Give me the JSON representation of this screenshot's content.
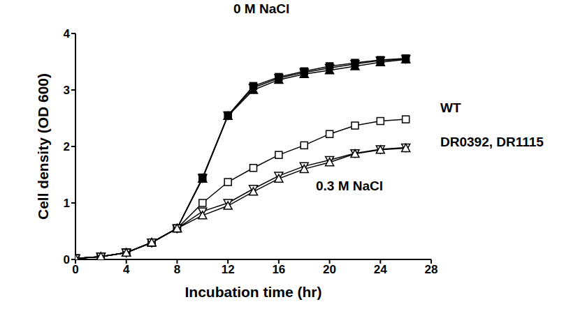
{
  "chart_data": {
    "type": "line",
    "x_label": "Incubation time (hr)",
    "y_label": "Cell density (OD 600)",
    "x": [
      0,
      2,
      4,
      6,
      8,
      10,
      12,
      14,
      16,
      18,
      20,
      22,
      24,
      26
    ],
    "series": [
      {
        "color": "#000000",
        "marker": "square",
        "values": [
          0.02,
          0.05,
          0.12,
          0.3,
          0.55,
          1.45,
          2.55,
          3.07,
          3.23,
          3.33,
          3.42,
          3.48,
          3.53,
          3.56
        ]
      },
      {
        "color": "#000000",
        "marker": "triangle",
        "values": [
          0.02,
          0.05,
          0.12,
          0.3,
          0.55,
          1.43,
          2.54,
          3.0,
          3.18,
          3.28,
          3.35,
          3.42,
          3.49,
          3.54
        ]
      },
      {
        "color": "#000000",
        "marker": "triangle_down",
        "values": [
          0.02,
          0.05,
          0.12,
          0.3,
          0.55,
          1.44,
          2.55,
          3.04,
          3.21,
          3.31,
          3.39,
          3.46,
          3.52,
          3.55
        ]
      },
      {
        "color": "#000000",
        "marker": "open_square",
        "values": [
          0.02,
          0.05,
          0.12,
          0.3,
          0.55,
          1.0,
          1.37,
          1.62,
          1.85,
          2.02,
          2.22,
          2.37,
          2.45,
          2.48
        ]
      },
      {
        "color": "#000000",
        "marker": "open_triangle_down",
        "values": [
          0.02,
          0.05,
          0.12,
          0.3,
          0.55,
          0.85,
          1.0,
          1.25,
          1.48,
          1.65,
          1.76,
          1.88,
          1.95,
          1.98
        ]
      },
      {
        "color": "#000000",
        "marker": "open_triangle",
        "values": [
          0.02,
          0.05,
          0.12,
          0.3,
          0.55,
          0.78,
          0.95,
          1.2,
          1.43,
          1.6,
          1.72,
          1.87,
          1.94,
          1.97
        ]
      }
    ],
    "annotations": [
      "0 M NaCl",
      "WT",
      "DR0392, DR1115",
      "0.3 M NaCl"
    ],
    "xlim": [
      0,
      28
    ],
    "xticks": [
      0,
      4,
      8,
      12,
      16,
      20,
      24,
      28
    ],
    "ylim": [
      0,
      4
    ],
    "yticks": [
      0,
      1,
      2,
      3,
      4
    ],
    "grid": false
  }
}
